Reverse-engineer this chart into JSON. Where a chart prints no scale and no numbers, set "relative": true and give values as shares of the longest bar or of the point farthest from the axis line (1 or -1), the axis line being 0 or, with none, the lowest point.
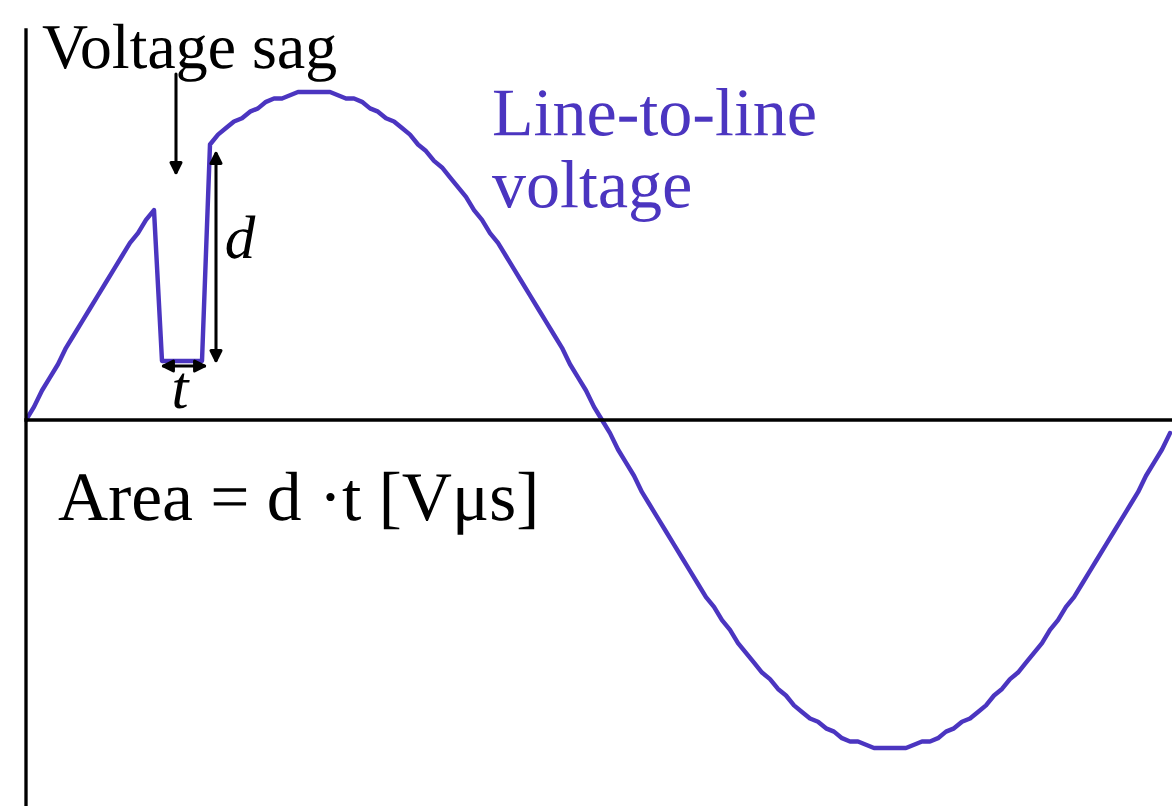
{
  "chart_data": {
    "type": "line",
    "relative": true,
    "categories": [
      null,
      null,
      null,
      null,
      null,
      null,
      null,
      null,
      null,
      null,
      null,
      null,
      null,
      null,
      null,
      null,
      null,
      null,
      null,
      null,
      null,
      null,
      null,
      null,
      null,
      null,
      null,
      null,
      null,
      null,
      null,
      null,
      null,
      null,
      null,
      null,
      null,
      null,
      null,
      null,
      null,
      null,
      null,
      null,
      null,
      null,
      null,
      null,
      null,
      null,
      null,
      null,
      null,
      null,
      null,
      null,
      null,
      null,
      null,
      null,
      null,
      null,
      null,
      null,
      null,
      null,
      null,
      null,
      null,
      null,
      null,
      null,
      null,
      null,
      null,
      null,
      null,
      null,
      null,
      null,
      null,
      null,
      null,
      null,
      null,
      null,
      null,
      null,
      null,
      null,
      null,
      null,
      null,
      null,
      null,
      null,
      null,
      null,
      null,
      null,
      null,
      null,
      null,
      null,
      null,
      null,
      null,
      null,
      null,
      null,
      null,
      null,
      null,
      null,
      null,
      null,
      null,
      null,
      null,
      null,
      null,
      null,
      null,
      null,
      null,
      null,
      null,
      null,
      null,
      null,
      null,
      null,
      null,
      null,
      null,
      null,
      null,
      null,
      null,
      null,
      null,
      null,
      null,
      null
    ],
    "series": [
      {
        "name": "Line-to-line\nvoltage",
        "color": "#4b35c0",
        "values": [
          0,
          0.04,
          0.09,
          0.13,
          0.17,
          0.22,
          0.26,
          0.3,
          0.34,
          0.38,
          0.42,
          0.46,
          0.5,
          0.54,
          0.57,
          0.61,
          0.64,
          0.18,
          0.18,
          0.18,
          0.18,
          0.18,
          0.18,
          0.84,
          0.87,
          0.89,
          0.91,
          0.92,
          0.94,
          0.95,
          0.97,
          0.98,
          0.98,
          0.99,
          1,
          1,
          1,
          1,
          1,
          0.99,
          0.98,
          0.98,
          0.97,
          0.95,
          0.94,
          0.92,
          0.91,
          0.89,
          0.87,
          0.84,
          0.82,
          0.79,
          0.77,
          0.74,
          0.71,
          0.68,
          0.64,
          0.61,
          0.57,
          0.54,
          0.5,
          0.46,
          0.42,
          0.38,
          0.34,
          0.3,
          0.26,
          0.22,
          0.17,
          0.13,
          0.09,
          0.04,
          0,
          -0.04,
          -0.09,
          -0.13,
          -0.17,
          -0.22,
          -0.26,
          -0.3,
          -0.34,
          -0.38,
          -0.42,
          -0.46,
          -0.5,
          -0.54,
          -0.57,
          -0.61,
          -0.64,
          -0.68,
          -0.71,
          -0.74,
          -0.77,
          -0.79,
          -0.82,
          -0.84,
          -0.87,
          -0.89,
          -0.91,
          -0.92,
          -0.94,
          -0.95,
          -0.97,
          -0.98,
          -0.98,
          -0.99,
          -1,
          -1,
          -1,
          -1,
          -1,
          -0.99,
          -0.98,
          -0.98,
          -0.97,
          -0.95,
          -0.94,
          -0.92,
          -0.91,
          -0.89,
          -0.87,
          -0.84,
          -0.82,
          -0.79,
          -0.77,
          -0.74,
          -0.71,
          -0.68,
          -0.64,
          -0.61,
          -0.57,
          -0.54,
          -0.5,
          -0.46,
          -0.42,
          -0.38,
          -0.34,
          -0.3,
          -0.26,
          -0.22,
          -0.17,
          -0.13,
          -0.09,
          -0.04
        ]
      }
    ],
    "annotations": [
      "Voltage sag",
      "d",
      "t",
      "Area = d ·t [Vμs]"
    ]
  }
}
